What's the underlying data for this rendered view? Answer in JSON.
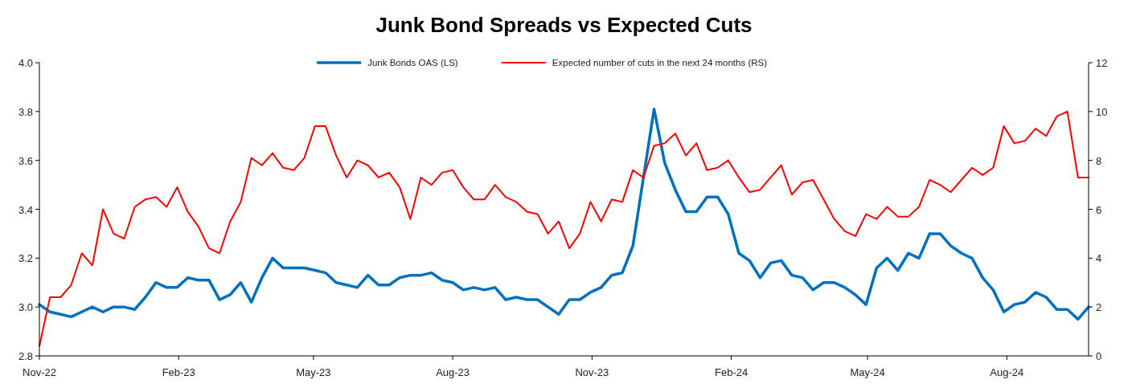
{
  "chart_data": {
    "type": "line",
    "title": "Junk Bond Spreads vs Expected Cuts",
    "legend": "top",
    "x": [
      "2022-11-01",
      "2022-11-08",
      "2022-11-15",
      "2022-11-22",
      "2022-11-29",
      "2022-12-06",
      "2022-12-13",
      "2022-12-20",
      "2022-12-27",
      "2023-01-03",
      "2023-01-10",
      "2023-01-17",
      "2023-01-24",
      "2023-01-31",
      "2023-02-07",
      "2023-02-14",
      "2023-02-21",
      "2023-02-28",
      "2023-03-07",
      "2023-03-14",
      "2023-03-21",
      "2023-03-28",
      "2023-04-04",
      "2023-04-11",
      "2023-04-18",
      "2023-04-25",
      "2023-05-02",
      "2023-05-09",
      "2023-05-16",
      "2023-05-23",
      "2023-05-30",
      "2023-06-06",
      "2023-06-13",
      "2023-06-20",
      "2023-06-27",
      "2023-07-04",
      "2023-07-11",
      "2023-07-18",
      "2023-07-25",
      "2023-08-01",
      "2023-08-08",
      "2023-08-15",
      "2023-08-22",
      "2023-08-29",
      "2023-09-05",
      "2023-09-12",
      "2023-09-19",
      "2023-09-26",
      "2023-10-03",
      "2023-10-10",
      "2023-10-17",
      "2023-10-24",
      "2023-10-31",
      "2023-11-07",
      "2023-11-14",
      "2023-11-21",
      "2023-11-28",
      "2023-12-05",
      "2023-12-12",
      "2023-12-19",
      "2023-12-26",
      "2024-01-02",
      "2024-01-09",
      "2024-01-16",
      "2024-01-23",
      "2024-01-30",
      "2024-02-06",
      "2024-02-13",
      "2024-02-20",
      "2024-02-27",
      "2024-03-05",
      "2024-03-12",
      "2024-03-19",
      "2024-03-26",
      "2024-04-02",
      "2024-04-09",
      "2024-04-16",
      "2024-04-23",
      "2024-04-30",
      "2024-05-07",
      "2024-05-14",
      "2024-05-21",
      "2024-05-28",
      "2024-06-04",
      "2024-06-11",
      "2024-06-18",
      "2024-06-25",
      "2024-07-02",
      "2024-07-09",
      "2024-07-16",
      "2024-07-23",
      "2024-07-30",
      "2024-08-06",
      "2024-08-13",
      "2024-08-20",
      "2024-08-27",
      "2024-09-03",
      "2024-09-10",
      "2024-09-17",
      "2024-09-24"
    ],
    "xlim": [
      "2022-11-01",
      "2024-09-24"
    ],
    "xticks": [
      {
        "value": "2022-11-01",
        "label": "Nov-22"
      },
      {
        "value": "2023-02-01",
        "label": "Feb-23"
      },
      {
        "value": "2023-05-01",
        "label": "May-23"
      },
      {
        "value": "2023-08-01",
        "label": "Aug-23"
      },
      {
        "value": "2023-11-01",
        "label": "Nov-23"
      },
      {
        "value": "2024-02-01",
        "label": "Feb-24"
      },
      {
        "value": "2024-05-01",
        "label": "May-24"
      },
      {
        "value": "2024-08-01",
        "label": "Aug-24"
      }
    ],
    "ylim": [
      2.8,
      4.0
    ],
    "yticks": [
      2.8,
      {
        "value": 3,
        "label": "3.0"
      },
      3.2,
      3.4,
      3.6,
      3.8,
      {
        "value": 4,
        "label": "4.0"
      }
    ],
    "y2lim": [
      0,
      12
    ],
    "y2ticks": [
      0,
      2,
      4,
      6,
      8,
      10,
      12
    ],
    "series": [
      {
        "name": "Junk Bonds OAS (LS)",
        "color": "#0070c0",
        "values": [
          3.01,
          2.98,
          2.97,
          2.96,
          2.98,
          3.0,
          2.98,
          3.0,
          3.0,
          2.99,
          3.04,
          3.1,
          3.08,
          3.08,
          3.12,
          3.11,
          3.11,
          3.03,
          3.05,
          3.1,
          3.02,
          3.12,
          3.2,
          3.16,
          3.16,
          3.16,
          3.15,
          3.14,
          3.1,
          3.09,
          3.08,
          3.13,
          3.09,
          3.09,
          3.12,
          3.13,
          3.13,
          3.14,
          3.11,
          3.1,
          3.07,
          3.08,
          3.07,
          3.08,
          3.03,
          3.04,
          3.03,
          3.03,
          3.0,
          2.97,
          3.03,
          3.03,
          3.06,
          3.08,
          3.13,
          3.14,
          3.25,
          3.53,
          3.81,
          3.59,
          3.48,
          3.39,
          3.39,
          3.45,
          3.45,
          3.38,
          3.22,
          3.19,
          3.12,
          3.18,
          3.19,
          3.13,
          3.12,
          3.07,
          3.1,
          3.1,
          3.08,
          3.05,
          3.01,
          3.16,
          3.2,
          3.15,
          3.22,
          3.2,
          3.3,
          3.3,
          3.25,
          3.22,
          3.2,
          3.12,
          3.07,
          2.98,
          3.01,
          3.02,
          3.06,
          3.04,
          2.99,
          2.99,
          2.95,
          3.0
        ]
      },
      {
        "name": "Expected number of cuts in the next 24 months (RS)",
        "color": "#ff0000",
        "axis": "y2",
        "values": [
          0.4,
          2.4,
          2.4,
          2.9,
          4.2,
          3.7,
          6.0,
          5.0,
          4.8,
          6.1,
          6.4,
          6.5,
          6.1,
          6.9,
          5.9,
          5.3,
          4.4,
          4.2,
          5.5,
          6.3,
          8.1,
          7.8,
          8.3,
          7.7,
          7.6,
          8.1,
          9.4,
          9.4,
          8.2,
          7.3,
          8.0,
          7.8,
          7.3,
          7.5,
          6.9,
          5.6,
          7.3,
          7.0,
          7.5,
          7.6,
          6.9,
          6.4,
          6.4,
          7.0,
          6.5,
          6.3,
          5.9,
          5.8,
          5.0,
          5.5,
          4.4,
          5.0,
          6.3,
          5.5,
          6.4,
          6.3,
          7.6,
          7.3,
          8.6,
          8.7,
          9.1,
          8.2,
          8.7,
          7.6,
          7.7,
          8.0,
          7.3,
          6.7,
          6.8,
          7.3,
          7.8,
          6.6,
          7.1,
          7.2,
          6.4,
          5.6,
          5.1,
          4.9,
          5.8,
          5.6,
          6.1,
          5.7,
          5.7,
          6.1,
          7.2,
          7.0,
          6.7,
          7.2,
          7.7,
          7.4,
          7.7,
          9.4,
          8.7,
          8.8,
          9.3,
          9.0,
          9.8,
          10.0,
          7.3,
          7.3
        ]
      }
    ]
  }
}
